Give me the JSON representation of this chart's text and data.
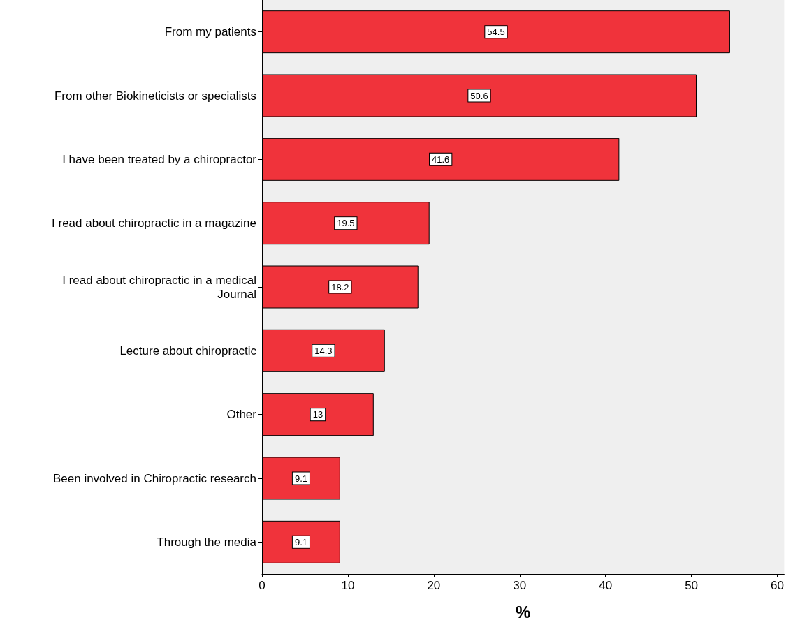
{
  "chart_data": {
    "type": "bar",
    "orientation": "horizontal",
    "xlabel": "%",
    "categories": [
      "From my patients",
      "From other Biokineticists or specialists",
      "I have been treated by a chiropractor",
      "I read about chiropractic in a magazine",
      "I read about chiropractic in a medical\nJournal",
      "Lecture about chiropractic",
      "Other",
      "Been involved in Chiropractic research",
      "Through the media"
    ],
    "values": [
      54.5,
      50.6,
      41.6,
      19.5,
      18.2,
      14.3,
      13,
      9.1,
      9.1
    ],
    "color": "#f0333b",
    "xlim": [
      0,
      60.8
    ],
    "xticks": [
      0,
      10,
      20,
      30,
      40,
      50,
      60
    ],
    "data_labels": true,
    "grid": false
  }
}
